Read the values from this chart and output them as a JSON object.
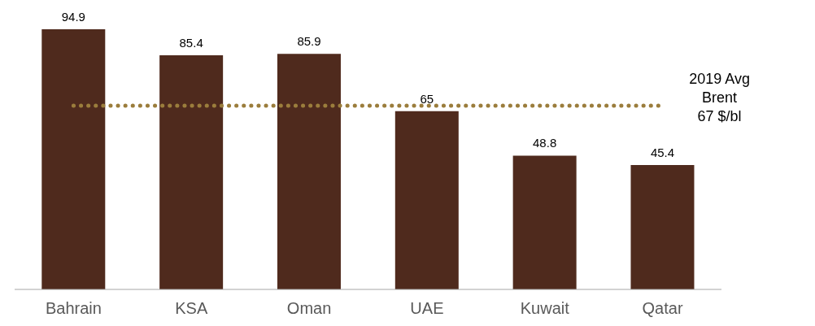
{
  "chart_data": {
    "type": "bar",
    "categories": [
      "Bahrain",
      "KSA",
      "Oman",
      "UAE",
      "Kuwait",
      "Qatar"
    ],
    "values": [
      94.9,
      85.4,
      85.9,
      65,
      48.8,
      45.4
    ],
    "color": "#4f2a1d",
    "data_labels": true,
    "ref_lines": [
      {
        "axis": "y",
        "value": 67,
        "label": "2019 Avg\nBrent\n67 $/bl",
        "color": "#9b7d3c",
        "line_style": "dotted"
      }
    ]
  }
}
